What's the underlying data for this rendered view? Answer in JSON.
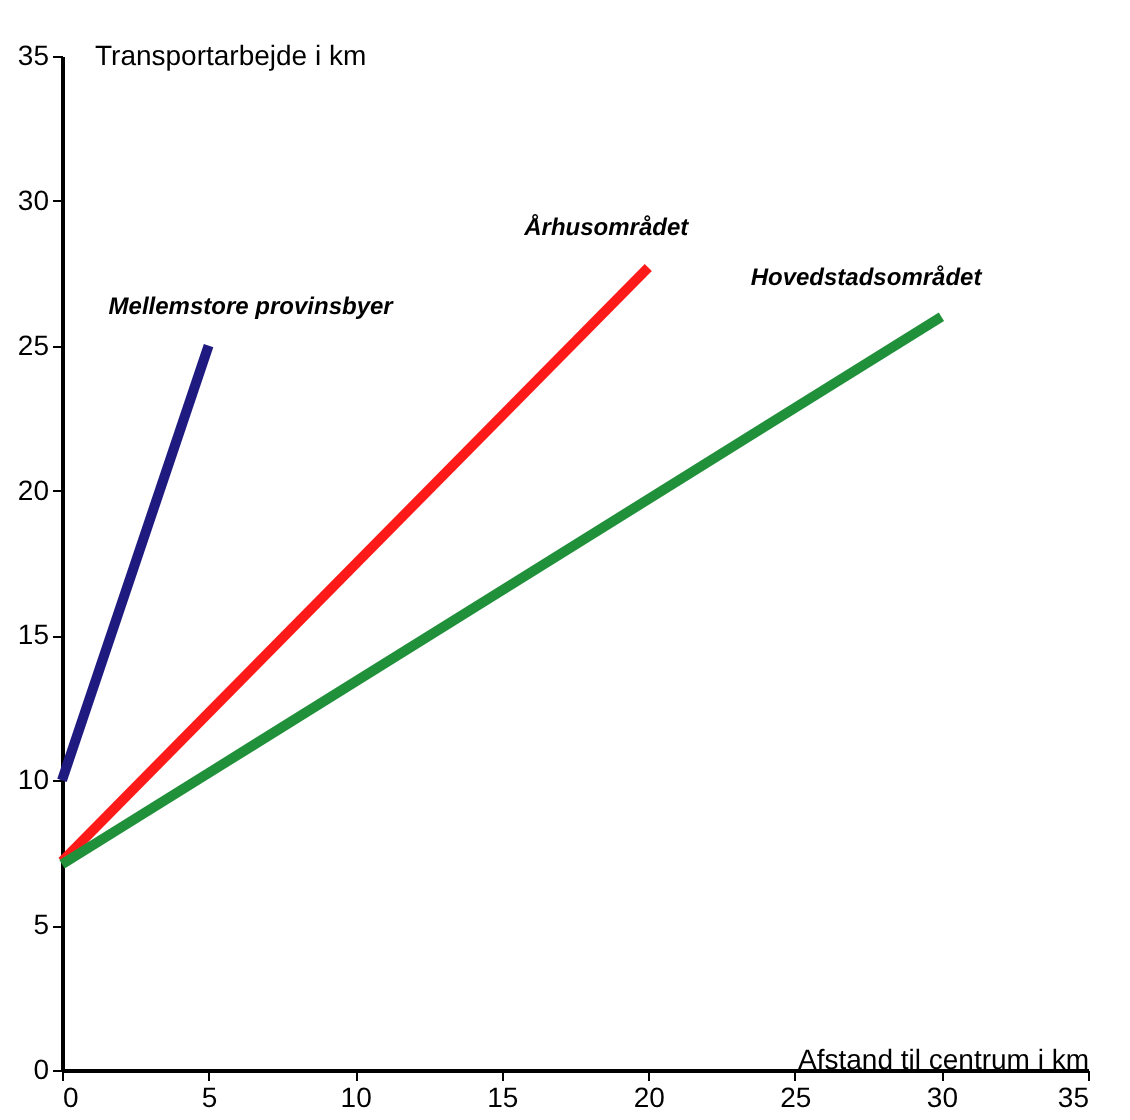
{
  "chart_data": {
    "type": "line",
    "xlabel": "Afstand til centrum i km",
    "ylabel": "Transportarbejde i km",
    "xlim": [
      0,
      35
    ],
    "xticks": [
      0,
      5,
      10,
      15,
      20,
      25,
      30,
      35
    ],
    "ylim": [
      0,
      35
    ],
    "yticks": [
      0,
      5,
      10,
      15,
      20,
      25,
      30,
      35
    ],
    "grid": false,
    "marker": "none",
    "line_style": "solid",
    "series": [
      {
        "name": "Mellemstore provinsbyer",
        "color": "#1f1a80",
        "x": [
          0,
          5
        ],
        "values": [
          10,
          25
        ]
      },
      {
        "name": "Århusområdet",
        "color": "#ff1a1a",
        "x": [
          0,
          20
        ],
        "values": [
          7.2,
          27.7
        ]
      },
      {
        "name": "Hovedstadsområdet",
        "color": "#20903a",
        "x": [
          0,
          30
        ],
        "values": [
          7.1,
          26
        ]
      }
    ]
  }
}
